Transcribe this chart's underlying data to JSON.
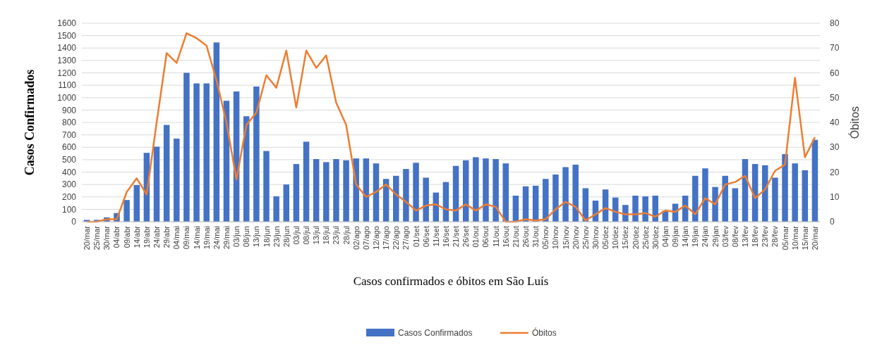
{
  "chart_data": {
    "type": "bar",
    "xlabel": "Casos confirmados e óbitos em São Luís",
    "ylabel": "Casos Confirmados",
    "y2label": "Óbitos",
    "categories": [
      "20/mar",
      "25/mar",
      "30/mar",
      "04/abr",
      "09/abr",
      "14/abr",
      "19/abr",
      "24/abr",
      "29/abr",
      "04/mai",
      "09/mai",
      "14/mai",
      "19/mai",
      "24/mai",
      "29/mai",
      "03/jun",
      "08/jun",
      "13/jun",
      "18/jun",
      "23/jun",
      "28/jun",
      "03/jul",
      "08/jul",
      "13/jul",
      "18/jul",
      "23/jul",
      "28/jul",
      "02/ago",
      "07/ago",
      "12/ago",
      "17/ago",
      "22/ago",
      "27/ago",
      "01/set",
      "06/set",
      "11/set",
      "16/set",
      "21/set",
      "26/set",
      "01/out",
      "06/out",
      "11/out",
      "16/out",
      "21/out",
      "26/out",
      "31/out",
      "05/nov",
      "10/nov",
      "15/nov",
      "20/nov",
      "25/nov",
      "30/nov",
      "05/dez",
      "10/dez",
      "15/dez",
      "20/dez",
      "25/dez",
      "30/dez",
      "04/jan",
      "09/jan",
      "14/jan",
      "19/jan",
      "24/jan",
      "29/jan",
      "03/fev",
      "08/fev",
      "13/fev",
      "18/fev",
      "23/fev",
      "28/fev",
      "05/mar",
      "10/mar",
      "15/mar",
      "20/mar"
    ],
    "series": [
      {
        "name": "Casos Confirmados",
        "color": "#4472c4",
        "values": [
          15,
          15,
          35,
          70,
          175,
          295,
          555,
          605,
          780,
          670,
          1200,
          1115,
          1115,
          1445,
          975,
          1050,
          850,
          1090,
          570,
          205,
          300,
          465,
          645,
          505,
          480,
          505,
          495,
          510,
          510,
          470,
          345,
          370,
          425,
          475,
          355,
          235,
          320,
          450,
          495,
          520,
          510,
          505,
          470,
          210,
          285,
          290,
          345,
          380,
          440,
          460,
          270,
          170,
          260,
          195,
          135,
          210,
          205,
          210,
          90,
          145,
          210,
          370,
          430,
          280,
          370,
          270,
          505,
          465,
          455,
          355,
          545,
          470,
          415,
          660
        ]
      },
      {
        "name": "Óbitos",
        "type": "line",
        "axis": "y2",
        "color": "#ed7d31",
        "values": [
          0,
          0,
          1,
          1,
          12,
          17.5,
          11,
          40,
          68,
          64,
          76,
          74,
          71,
          57,
          40,
          17,
          39,
          44,
          59,
          54,
          69,
          46,
          69,
          62,
          67,
          48,
          39,
          15,
          10,
          12,
          15,
          11,
          8,
          4.5,
          6.5,
          7,
          5,
          4.5,
          7,
          4.5,
          7,
          6,
          0,
          0,
          1,
          0.5,
          1,
          5,
          8,
          6,
          0.5,
          3,
          5.5,
          4,
          3,
          3,
          3.5,
          2,
          4.5,
          4,
          6.5,
          3,
          9.5,
          7,
          15,
          16,
          18.5,
          9.5,
          13,
          20.5,
          23,
          58,
          26,
          34
        ]
      }
    ],
    "ylim": [
      0,
      1600
    ],
    "yticks": [
      0,
      100,
      200,
      300,
      400,
      500,
      600,
      700,
      800,
      900,
      1000,
      1100,
      1200,
      1300,
      1400,
      1500,
      1600
    ],
    "y2lim": [
      0,
      80
    ],
    "y2ticks": [
      0,
      10,
      20,
      30,
      40,
      50,
      60,
      70,
      80
    ],
    "grid": "y",
    "legend": "bottom",
    "marker": "none",
    "line_style": "solid"
  }
}
